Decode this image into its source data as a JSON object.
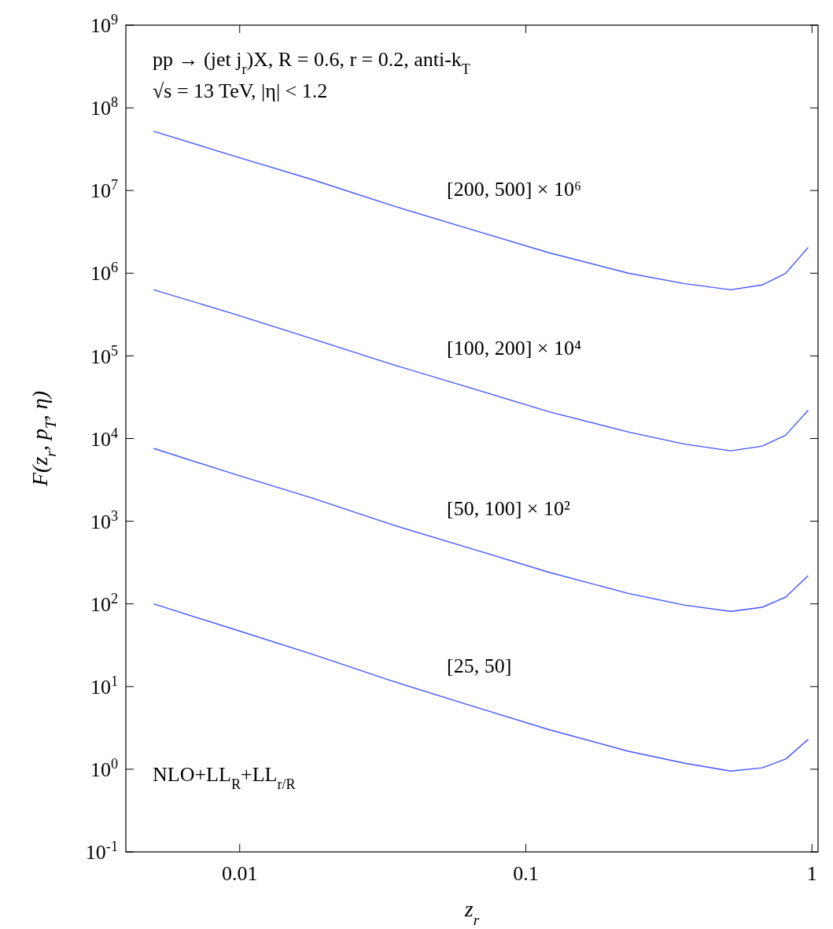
{
  "chart_data": {
    "type": "line",
    "xlabel": "z$_{r}$",
    "ylabel": "F(z$_{r}$, p$_{T}$, η)",
    "log": "xy",
    "line_style": "solid",
    "x": [
      0.005,
      0.0096,
      0.018,
      0.034,
      0.064,
      0.121,
      0.228,
      0.356,
      0.52,
      0.67,
      0.81,
      0.97
    ],
    "xlim": [
      0.004,
      1.05
    ],
    "ylim": [
      0.1,
      1000000000
    ],
    "xticks": [
      0.01,
      0.1,
      1
    ],
    "yticks": [
      {
        "value": 0.1,
        "label": "10$^{-1}$"
      },
      {
        "value": 1,
        "label": "10$^{0}$"
      },
      {
        "value": 10,
        "label": "10$^{1}$"
      },
      {
        "value": 100,
        "label": "10$^{2}$"
      },
      {
        "value": 1000,
        "label": "10$^{3}$"
      },
      {
        "value": 10000,
        "label": "10$^{4}$"
      },
      {
        "value": 100000,
        "label": "10$^{5}$"
      },
      {
        "value": 1000000,
        "label": "10$^{6}$"
      },
      {
        "value": 10000000,
        "label": "10$^{7}$"
      },
      {
        "value": 100000000,
        "label": "10$^{8}$"
      },
      {
        "value": 1000000000,
        "label": "10$^{9}$"
      }
    ],
    "series": [
      {
        "name": "[200, 500] × 10⁶",
        "color": "#4455ff",
        "values": [
          52000000,
          26000000,
          13500000,
          6600000,
          3400000,
          1760000,
          1000000,
          750000,
          630000,
          720000,
          1000000,
          2050000
        ]
      },
      {
        "name": "[100, 200] × 10⁴",
        "color": "#4455ff",
        "values": [
          630000,
          320000,
          160000,
          79000,
          41000,
          21000,
          12000,
          8600,
          7100,
          8100,
          11000,
          22000
        ]
      },
      {
        "name": "[50, 100] × 10²",
        "color": "#4455ff",
        "values": [
          7600,
          3700,
          1900,
          910,
          470,
          240,
          134,
          97,
          81,
          91,
          121,
          220
        ]
      },
      {
        "name": "[25, 50]",
        "color": "#4455ff",
        "values": [
          100,
          49,
          24.5,
          11.7,
          5.9,
          3.0,
          1.65,
          1.19,
          0.95,
          1.04,
          1.33,
          2.3
        ]
      }
    ],
    "annotations": [
      "pp → (jet j$_{r}$)X, R = 0.6, r = 0.2, anti-k$_{T}$",
      "√s = 13 TeV, |η| < 1.2",
      "NLO+LL$_{R}$+LL$_{r/R}$"
    ]
  }
}
